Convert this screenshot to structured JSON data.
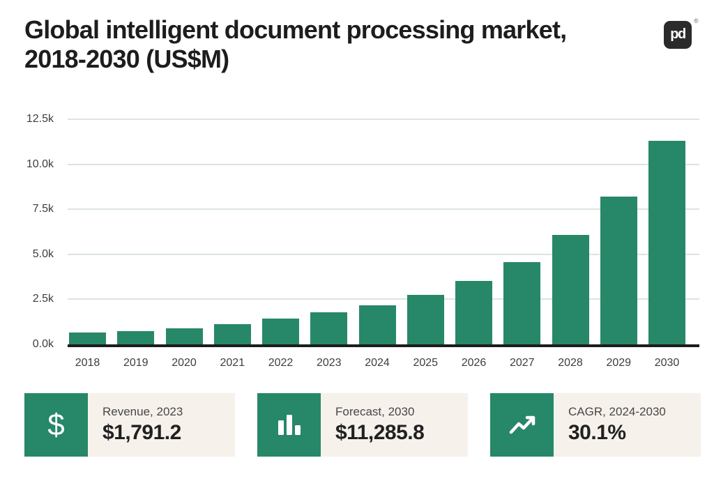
{
  "header": {
    "title": "Global intelligent document processing market, 2018-2030 (US$M)",
    "logo": {
      "monogram": "pd",
      "registered": "®"
    }
  },
  "chart_data": {
    "type": "bar",
    "title": "Global intelligent document processing market, 2018-2030 (US$M)",
    "unit": "US$M",
    "categories": [
      "2018",
      "2019",
      "2020",
      "2021",
      "2022",
      "2023",
      "2024",
      "2025",
      "2026",
      "2027",
      "2028",
      "2029",
      "2030"
    ],
    "values": [
      640,
      740,
      900,
      1140,
      1430,
      1791.2,
      2180,
      2730,
      3530,
      4550,
      6060,
      8210,
      11285.8
    ],
    "xlabel": "",
    "ylabel": "",
    "ylim": [
      0,
      12500
    ],
    "yticks": {
      "labels": [
        "12.5k",
        "10.0k",
        "7.5k",
        "5.0k",
        "2.5k",
        "0.0k"
      ],
      "values": [
        12500,
        10000,
        7500,
        5000,
        2500,
        0
      ]
    },
    "grid": true,
    "legend": false,
    "colors": {
      "bar": "#278769",
      "gridline": "#dbe5df",
      "axis": "#1c1c1c",
      "tick_text": "#3d3d3d"
    }
  },
  "cards": [
    {
      "icon": "dollar-icon",
      "icon_glyph": "$",
      "label": "Revenue, 2023",
      "value": "$1,791.2"
    },
    {
      "icon": "bar-chart-icon",
      "label": "Forecast, 2030",
      "value": "$11,285.8"
    },
    {
      "icon": "trending-up-icon",
      "label": "CAGR, 2024-2030",
      "value": "30.1%"
    }
  ],
  "colors": {
    "accent_green": "#278769",
    "card_bg": "#f6f1eb",
    "title_text": "#1d1d1f",
    "logo_bg": "#2b2b2c"
  }
}
